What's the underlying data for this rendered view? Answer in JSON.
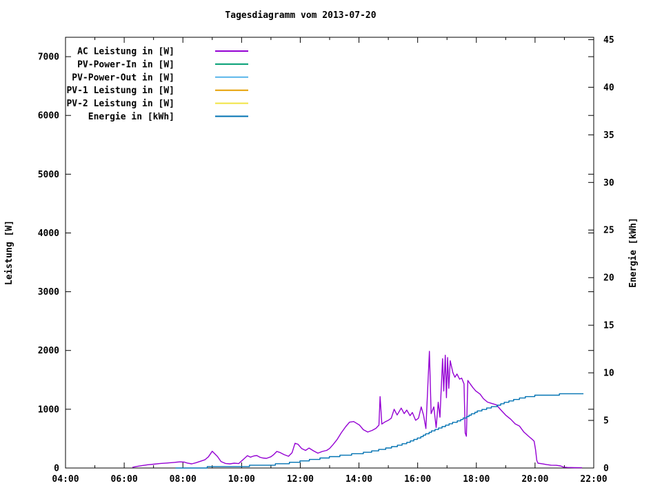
{
  "window": {
    "title": "Tagesdiagramm vom 2013-07-20"
  },
  "chart_data": {
    "type": "line",
    "title": "Tagesdiagramm vom 2013-07-20",
    "xlabel": "",
    "ylabel_left": "Leistung [W]",
    "ylabel_right": "Energie [kWh]",
    "grid": false,
    "background": "#ffffff",
    "axis_color": "#000000",
    "legend_position": "top-left-inside",
    "xlim": [
      4,
      22
    ],
    "ylim_left": [
      0,
      7330
    ],
    "ylim_right": [
      0,
      45.25
    ],
    "x_ticks": [
      {
        "v": 4,
        "label": "04:00"
      },
      {
        "v": 6,
        "label": "06:00"
      },
      {
        "v": 8,
        "label": "08:00"
      },
      {
        "v": 10,
        "label": "10:00"
      },
      {
        "v": 12,
        "label": "12:00"
      },
      {
        "v": 14,
        "label": "14:00"
      },
      {
        "v": 16,
        "label": "16:00"
      },
      {
        "v": 18,
        "label": "18:00"
      },
      {
        "v": 20,
        "label": "20:00"
      },
      {
        "v": 22,
        "label": "22:00"
      }
    ],
    "x_minor_ticks": [
      5,
      7,
      9,
      11,
      13,
      15,
      17,
      19,
      21
    ],
    "y_ticks_left": [
      {
        "v": 0,
        "label": "0"
      },
      {
        "v": 1000,
        "label": "1000"
      },
      {
        "v": 2000,
        "label": "2000"
      },
      {
        "v": 3000,
        "label": "3000"
      },
      {
        "v": 4000,
        "label": "4000"
      },
      {
        "v": 5000,
        "label": "5000"
      },
      {
        "v": 6000,
        "label": "6000"
      },
      {
        "v": 7000,
        "label": "7000"
      }
    ],
    "y_ticks_right": [
      {
        "v": 0,
        "label": "0"
      },
      {
        "v": 5,
        "label": "5"
      },
      {
        "v": 10,
        "label": "10"
      },
      {
        "v": 15,
        "label": "15"
      },
      {
        "v": 20,
        "label": "20"
      },
      {
        "v": 25,
        "label": "25"
      },
      {
        "v": 30,
        "label": "30"
      },
      {
        "v": 35,
        "label": "35"
      },
      {
        "v": 40,
        "label": "40"
      },
      {
        "v": 45,
        "label": "45"
      }
    ],
    "series": [
      {
        "name": "AC Leistung in [W]",
        "color": "#9400D3",
        "axis": "left",
        "visible": true,
        "points": [
          [
            6.28,
            10
          ],
          [
            6.4,
            25
          ],
          [
            6.6,
            40
          ],
          [
            6.8,
            55
          ],
          [
            7.0,
            65
          ],
          [
            7.2,
            75
          ],
          [
            7.45,
            85
          ],
          [
            7.7,
            95
          ],
          [
            7.9,
            105
          ],
          [
            8.05,
            100
          ],
          [
            8.15,
            85
          ],
          [
            8.3,
            70
          ],
          [
            8.45,
            90
          ],
          [
            8.6,
            115
          ],
          [
            8.75,
            140
          ],
          [
            8.87,
            190
          ],
          [
            9.0,
            285
          ],
          [
            9.07,
            250
          ],
          [
            9.18,
            195
          ],
          [
            9.3,
            110
          ],
          [
            9.45,
            78
          ],
          [
            9.6,
            70
          ],
          [
            9.75,
            82
          ],
          [
            9.9,
            75
          ],
          [
            10.0,
            120
          ],
          [
            10.1,
            165
          ],
          [
            10.2,
            210
          ],
          [
            10.3,
            185
          ],
          [
            10.42,
            205
          ],
          [
            10.52,
            212
          ],
          [
            10.62,
            185
          ],
          [
            10.72,
            170
          ],
          [
            10.85,
            165
          ],
          [
            11.0,
            192
          ],
          [
            11.1,
            230
          ],
          [
            11.2,
            282
          ],
          [
            11.3,
            265
          ],
          [
            11.45,
            228
          ],
          [
            11.6,
            200
          ],
          [
            11.72,
            260
          ],
          [
            11.82,
            420
          ],
          [
            11.92,
            405
          ],
          [
            12.05,
            330
          ],
          [
            12.18,
            300
          ],
          [
            12.3,
            340
          ],
          [
            12.45,
            292
          ],
          [
            12.6,
            252
          ],
          [
            12.75,
            282
          ],
          [
            12.9,
            300
          ],
          [
            13.0,
            332
          ],
          [
            13.12,
            400
          ],
          [
            13.25,
            480
          ],
          [
            13.4,
            600
          ],
          [
            13.55,
            705
          ],
          [
            13.68,
            780
          ],
          [
            13.82,
            790
          ],
          [
            13.92,
            760
          ],
          [
            14.02,
            730
          ],
          [
            14.15,
            652
          ],
          [
            14.3,
            612
          ],
          [
            14.45,
            640
          ],
          [
            14.58,
            675
          ],
          [
            14.68,
            730
          ],
          [
            14.72,
            1215
          ],
          [
            14.78,
            748
          ],
          [
            14.88,
            782
          ],
          [
            15.0,
            812
          ],
          [
            15.1,
            848
          ],
          [
            15.2,
            1000
          ],
          [
            15.3,
            902
          ],
          [
            15.44,
            1020
          ],
          [
            15.54,
            926
          ],
          [
            15.63,
            985
          ],
          [
            15.74,
            890
          ],
          [
            15.82,
            945
          ],
          [
            15.93,
            812
          ],
          [
            16.03,
            848
          ],
          [
            16.12,
            1040
          ],
          [
            16.2,
            900
          ],
          [
            16.28,
            672
          ],
          [
            16.4,
            1985
          ],
          [
            16.46,
            926
          ],
          [
            16.55,
            1040
          ],
          [
            16.63,
            690
          ],
          [
            16.7,
            1120
          ],
          [
            16.76,
            865
          ],
          [
            16.85,
            1860
          ],
          [
            16.89,
            1310
          ],
          [
            16.94,
            1920
          ],
          [
            16.98,
            1196
          ],
          [
            17.02,
            1880
          ],
          [
            17.06,
            1356
          ],
          [
            17.11,
            1825
          ],
          [
            17.2,
            1625
          ],
          [
            17.27,
            1545
          ],
          [
            17.34,
            1600
          ],
          [
            17.43,
            1512
          ],
          [
            17.5,
            1530
          ],
          [
            17.58,
            1432
          ],
          [
            17.62,
            596
          ],
          [
            17.66,
            540
          ],
          [
            17.71,
            1490
          ],
          [
            17.79,
            1432
          ],
          [
            17.88,
            1370
          ],
          [
            17.98,
            1312
          ],
          [
            18.13,
            1256
          ],
          [
            18.24,
            1180
          ],
          [
            18.38,
            1122
          ],
          [
            18.52,
            1100
          ],
          [
            18.68,
            1076
          ],
          [
            18.85,
            980
          ],
          [
            19.0,
            900
          ],
          [
            19.17,
            830
          ],
          [
            19.32,
            752
          ],
          [
            19.47,
            714
          ],
          [
            19.62,
            612
          ],
          [
            19.78,
            540
          ],
          [
            19.9,
            490
          ],
          [
            19.97,
            456
          ],
          [
            20.02,
            306
          ],
          [
            20.06,
            130
          ],
          [
            20.1,
            82
          ],
          [
            20.25,
            72
          ],
          [
            20.4,
            58
          ],
          [
            20.55,
            48
          ],
          [
            20.72,
            46
          ],
          [
            20.87,
            35
          ],
          [
            20.98,
            14
          ],
          [
            21.1,
            9
          ],
          [
            21.35,
            6
          ],
          [
            21.6,
            5
          ]
        ]
      },
      {
        "name": "PV-Power-In in [W]",
        "color": "#009E73",
        "axis": "left",
        "visible": false,
        "points": []
      },
      {
        "name": "PV-Power-Out in [W]",
        "color": "#56B4E9",
        "axis": "left",
        "visible": false,
        "points": []
      },
      {
        "name": "PV-1 Leistung in [W]",
        "color": "#E69F00",
        "axis": "left",
        "visible": false,
        "points": []
      },
      {
        "name": "PV-2 Leistung in [W]",
        "color": "#F0E442",
        "axis": "left",
        "visible": false,
        "points": []
      },
      {
        "name": "Energie in [kWh]",
        "color": "#0072B2",
        "axis": "right",
        "visible": true,
        "step_quantize": 0.15,
        "points": [
          [
            7.75,
            0.02
          ],
          [
            8.2,
            0.04
          ],
          [
            8.6,
            0.06
          ],
          [
            9.0,
            0.09
          ],
          [
            9.4,
            0.13
          ],
          [
            9.8,
            0.17
          ],
          [
            10.2,
            0.22
          ],
          [
            10.6,
            0.28
          ],
          [
            11.0,
            0.34
          ],
          [
            11.4,
            0.45
          ],
          [
            11.8,
            0.6
          ],
          [
            12.2,
            0.78
          ],
          [
            12.6,
            0.95
          ],
          [
            13.0,
            1.15
          ],
          [
            13.4,
            1.3
          ],
          [
            13.8,
            1.45
          ],
          [
            14.2,
            1.6
          ],
          [
            14.6,
            1.85
          ],
          [
            15.0,
            2.1
          ],
          [
            15.4,
            2.4
          ],
          [
            15.8,
            2.85
          ],
          [
            16.1,
            3.25
          ],
          [
            16.5,
            3.9
          ],
          [
            17.0,
            4.5
          ],
          [
            17.5,
            5.1
          ],
          [
            18.0,
            5.9
          ],
          [
            18.3,
            6.2
          ],
          [
            18.7,
            6.55
          ],
          [
            19.0,
            6.9
          ],
          [
            19.35,
            7.2
          ],
          [
            19.7,
            7.45
          ],
          [
            20.0,
            7.6
          ],
          [
            20.5,
            7.7
          ],
          [
            21.0,
            7.74
          ],
          [
            21.65,
            7.75
          ]
        ]
      }
    ]
  }
}
